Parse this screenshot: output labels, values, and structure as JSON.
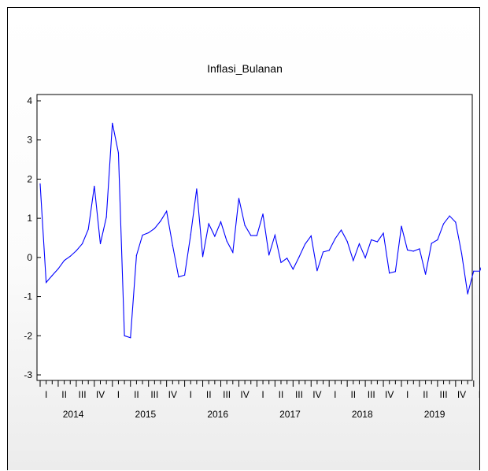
{
  "chart_data": {
    "type": "line",
    "title": "Inflasi_Bulanan",
    "xlabel": "",
    "ylabel": "",
    "ylim": [
      -3,
      4
    ],
    "yticks": [
      "-3",
      "-2",
      "-1",
      "0",
      "1",
      "2",
      "3",
      "4"
    ],
    "quarter_labels": [
      "I",
      "II",
      "III",
      "IV"
    ],
    "years": [
      "2014",
      "2015",
      "2016",
      "2017",
      "2018",
      "2019"
    ],
    "grid": false,
    "line_color": "#0000ff",
    "series": [
      {
        "values": [
          1.88,
          -0.64,
          -0.46,
          -0.29,
          -0.08,
          0.03,
          0.17,
          0.35,
          0.72,
          1.82,
          0.35,
          1.03,
          3.43,
          2.67,
          -2.0,
          -2.05,
          0.05,
          0.57,
          0.63,
          0.74,
          0.93,
          1.18,
          0.31,
          -0.5,
          -0.45,
          0.58,
          1.75,
          0.02,
          0.86,
          0.54,
          0.91,
          0.42,
          0.13,
          1.51,
          0.82,
          0.56,
          0.56,
          1.11,
          0.06,
          0.57,
          -0.13,
          -0.02,
          -0.3,
          0.01,
          0.34,
          0.55,
          -0.34,
          0.14,
          0.18,
          0.48,
          0.7,
          0.41,
          -0.08,
          0.35,
          -0.01,
          0.45,
          0.4,
          0.62,
          -0.4,
          -0.36,
          0.8,
          0.19,
          0.16,
          0.22,
          -0.43,
          0.36,
          0.45,
          0.86,
          1.06,
          0.9,
          0.1,
          -0.93,
          -0.35,
          -0.35,
          0.05
        ]
      }
    ]
  }
}
